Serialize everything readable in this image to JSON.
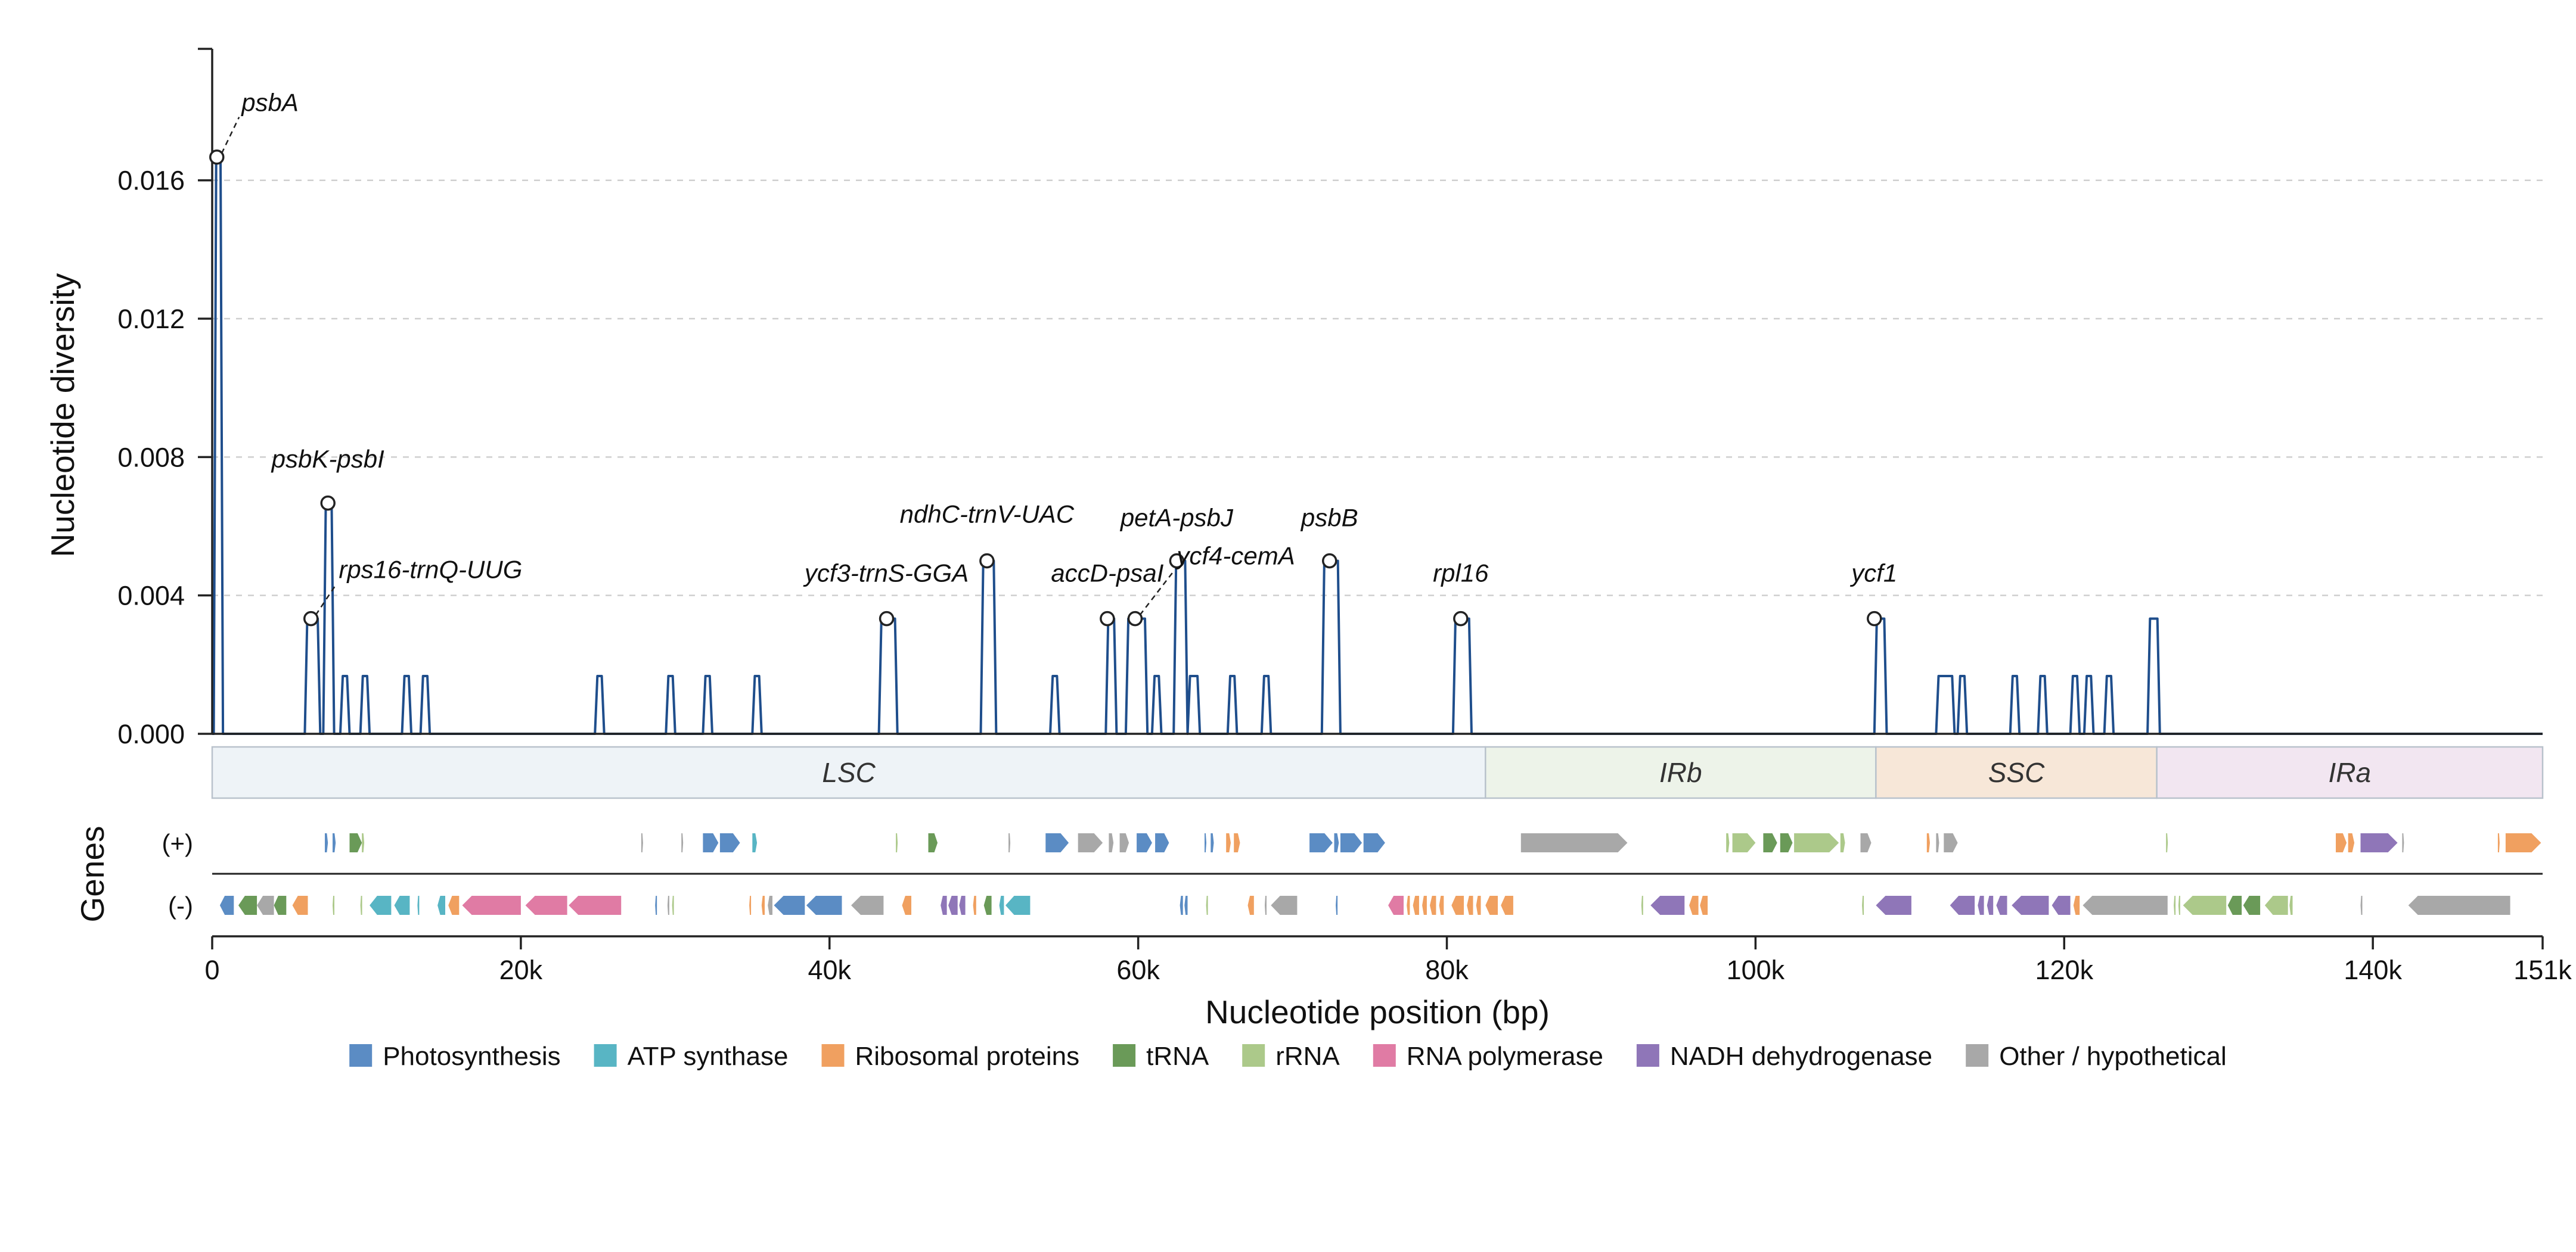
{
  "chart_data": {
    "type": "line",
    "title": "",
    "xlabel": "Nucleotide position (bp)",
    "ylabel": "Nucleotide diversity",
    "genes_label": "Genes",
    "xlim": [
      0,
      151000
    ],
    "ylim": [
      0,
      0.0198
    ],
    "grid": true,
    "x_ticks": [
      {
        "value": 0,
        "label": "0"
      },
      {
        "value": 20000,
        "label": "20k"
      },
      {
        "value": 40000,
        "label": "40k"
      },
      {
        "value": 60000,
        "label": "60k"
      },
      {
        "value": 80000,
        "label": "80k"
      },
      {
        "value": 100000,
        "label": "100k"
      },
      {
        "value": 120000,
        "label": "120k"
      },
      {
        "value": 140000,
        "label": "140k"
      },
      {
        "value": 151000,
        "label": "151k"
      }
    ],
    "y_ticks": [
      {
        "value": 0,
        "label": "0.000"
      },
      {
        "value": 0.004,
        "label": "0.004"
      },
      {
        "value": 0.008,
        "label": "0.008"
      },
      {
        "value": 0.012,
        "label": "0.012"
      },
      {
        "value": 0.016,
        "label": "0.016"
      }
    ],
    "peaks": [
      [
        100,
        700,
        0.01667
      ],
      [
        6000,
        7000,
        0.00333
      ],
      [
        7200,
        7900,
        0.00667
      ],
      [
        8300,
        8900,
        0.00167
      ],
      [
        9600,
        10200,
        0.00167
      ],
      [
        12300,
        12900,
        0.00167
      ],
      [
        13500,
        14100,
        0.00167
      ],
      [
        24800,
        25400,
        0.00167
      ],
      [
        29400,
        30000,
        0.00167
      ],
      [
        31800,
        32400,
        0.00167
      ],
      [
        35000,
        35600,
        0.00167
      ],
      [
        43200,
        44400,
        0.00333
      ],
      [
        49800,
        50800,
        0.005
      ],
      [
        54300,
        54900,
        0.00167
      ],
      [
        57900,
        58600,
        0.00333
      ],
      [
        59200,
        60600,
        0.00333
      ],
      [
        60900,
        61500,
        0.00167
      ],
      [
        62300,
        63200,
        0.005
      ],
      [
        63200,
        64000,
        0.00167
      ],
      [
        65800,
        66400,
        0.00167
      ],
      [
        68000,
        68600,
        0.00167
      ],
      [
        71900,
        73100,
        0.005
      ],
      [
        80400,
        81600,
        0.00333
      ],
      [
        107700,
        108500,
        0.00333
      ],
      [
        111700,
        112900,
        0.00167
      ],
      [
        113100,
        113700,
        0.00167
      ],
      [
        116500,
        117100,
        0.00167
      ],
      [
        118300,
        118900,
        0.00167
      ],
      [
        120400,
        121000,
        0.00167
      ],
      [
        121300,
        121900,
        0.00167
      ],
      [
        122600,
        123200,
        0.00167
      ],
      [
        125400,
        126200,
        0.00333
      ]
    ],
    "labeled_peaks": [
      {
        "label": "psbA",
        "x": 300,
        "y": 0.01667,
        "tx": 1900,
        "ty": 0.018,
        "leader": true
      },
      {
        "label": "psbK-psbI",
        "x": 7500,
        "y": 0.00667,
        "tx": 7500,
        "ty": 0.0077,
        "leader": false
      },
      {
        "label": "rps16-trnQ-UUG",
        "x": 6400,
        "y": 0.00333,
        "tx": 8200,
        "ty": 0.0045,
        "leader": true
      },
      {
        "label": "ycf3-trnS-GGA",
        "x": 43700,
        "y": 0.00333,
        "tx": 43700,
        "ty": 0.0044,
        "leader": false
      },
      {
        "label": "ndhC-trnV-UAC",
        "x": 50200,
        "y": 0.005,
        "tx": 50200,
        "ty": 0.0061,
        "leader": false
      },
      {
        "label": "accD-psaI",
        "x": 58000,
        "y": 0.00333,
        "tx": 58000,
        "ty": 0.0044,
        "leader": false
      },
      {
        "label": "petA-psbJ",
        "x": 62500,
        "y": 0.005,
        "tx": 62500,
        "ty": 0.006,
        "leader": false
      },
      {
        "label": "ycf4-cemA",
        "x": 59800,
        "y": 0.00333,
        "tx": 62500,
        "ty": 0.0049,
        "leader": true
      },
      {
        "label": "psbB",
        "x": 72400,
        "y": 0.005,
        "tx": 72400,
        "ty": 0.006,
        "leader": false
      },
      {
        "label": "rpl16",
        "x": 80900,
        "y": 0.00333,
        "tx": 80900,
        "ty": 0.0044,
        "leader": false
      },
      {
        "label": "ycf1",
        "x": 107700,
        "y": 0.00333,
        "tx": 107700,
        "ty": 0.0044,
        "leader": false
      }
    ],
    "regions": [
      {
        "name": "LSC",
        "start": 0,
        "end": 82500,
        "color": "#eef3f7"
      },
      {
        "name": "IRb",
        "start": 82500,
        "end": 107800,
        "color": "#edf3e9"
      },
      {
        "name": "SSC",
        "start": 107800,
        "end": 126000,
        "color": "#f7e7d8"
      },
      {
        "name": "IRa",
        "start": 126000,
        "end": 151000,
        "color": "#f2e6f1"
      }
    ],
    "strands": [
      "(+)",
      "(-)"
    ],
    "categories": [
      {
        "name": "Photosynthesis",
        "color": "#5b8cc4"
      },
      {
        "name": "ATP synthase",
        "color": "#58b5c4"
      },
      {
        "name": "Ribosomal proteins",
        "color": "#f0a060"
      },
      {
        "name": "tRNA",
        "color": "#6a9a58"
      },
      {
        "name": "rRNA",
        "color": "#acc98a"
      },
      {
        "name": "RNA polymerase",
        "color": "#e07ba4"
      },
      {
        "name": "NADH dehydrogenase",
        "color": "#8f76b8"
      },
      {
        "name": "Other / hypothetical",
        "color": "#a8a8a8"
      }
    ],
    "genes_plus": [
      [
        7300,
        7500,
        "Photosynthesis"
      ],
      [
        7800,
        8000,
        "Photosynthesis"
      ],
      [
        8900,
        9700,
        "tRNA"
      ],
      [
        9700,
        9850,
        "rRNA"
      ],
      [
        27800,
        27900,
        "Other / hypothetical"
      ],
      [
        30400,
        30500,
        "Other / hypothetical"
      ],
      [
        31800,
        32800,
        "Photosynthesis"
      ],
      [
        32900,
        34200,
        "Photosynthesis"
      ],
      [
        35000,
        35300,
        "ATP synthase"
      ],
      [
        44300,
        44400,
        "rRNA"
      ],
      [
        46400,
        47000,
        "tRNA"
      ],
      [
        51600,
        51700,
        "Other / hypothetical"
      ],
      [
        54000,
        55500,
        "Photosynthesis"
      ],
      [
        56100,
        57700,
        "Other / hypothetical"
      ],
      [
        58100,
        58400,
        "Other / hypothetical"
      ],
      [
        58800,
        59400,
        "Other / hypothetical"
      ],
      [
        59900,
        60900,
        "Photosynthesis"
      ],
      [
        61100,
        62000,
        "Photosynthesis"
      ],
      [
        64300,
        64400,
        "Photosynthesis"
      ],
      [
        64700,
        64900,
        "Photosynthesis"
      ],
      [
        65700,
        66000,
        "Ribosomal proteins"
      ],
      [
        66200,
        66600,
        "Ribosomal proteins"
      ],
      [
        71100,
        72600,
        "Photosynthesis"
      ],
      [
        72700,
        73000,
        "Photosynthesis"
      ],
      [
        73100,
        74500,
        "Photosynthesis"
      ],
      [
        74600,
        76000,
        "Photosynthesis"
      ],
      [
        84800,
        91700,
        "Other / hypothetical"
      ],
      [
        98100,
        98300,
        "rRNA"
      ],
      [
        98500,
        100000,
        "rRNA"
      ],
      [
        100500,
        101400,
        "tRNA"
      ],
      [
        101600,
        102400,
        "tRNA"
      ],
      [
        102500,
        105400,
        "rRNA"
      ],
      [
        105500,
        105800,
        "rRNA"
      ],
      [
        106800,
        107500,
        "Other / hypothetical"
      ],
      [
        111100,
        111300,
        "Ribosomal proteins"
      ],
      [
        111700,
        111900,
        "Other / hypothetical"
      ],
      [
        112200,
        113100,
        "Other / hypothetical"
      ],
      [
        126600,
        126700,
        "rRNA"
      ],
      [
        137600,
        138300,
        "Ribosomal proteins"
      ],
      [
        138400,
        138800,
        "Ribosomal proteins"
      ],
      [
        139200,
        141600,
        "NADH dehydrogenase"
      ],
      [
        141900,
        142000,
        "Other / hypothetical"
      ],
      [
        148100,
        148200,
        "Ribosomal proteins"
      ],
      [
        148600,
        150900,
        "Ribosomal proteins"
      ]
    ],
    "genes_minus": [
      [
        500,
        1400,
        "Photosynthesis"
      ],
      [
        1700,
        2900,
        "tRNA"
      ],
      [
        2900,
        4000,
        "Other / hypothetical"
      ],
      [
        4000,
        4800,
        "tRNA"
      ],
      [
        5200,
        6200,
        "Ribosomal proteins"
      ],
      [
        7800,
        7900,
        "rRNA"
      ],
      [
        9600,
        9700,
        "rRNA"
      ],
      [
        10200,
        11600,
        "ATP synthase"
      ],
      [
        11800,
        12800,
        "ATP synthase"
      ],
      [
        13300,
        13400,
        "ATP synthase"
      ],
      [
        14600,
        15100,
        "ATP synthase"
      ],
      [
        15300,
        16000,
        "Ribosomal proteins"
      ],
      [
        16200,
        20000,
        "RNA polymerase"
      ],
      [
        20300,
        23000,
        "RNA polymerase"
      ],
      [
        23100,
        26500,
        "RNA polymerase"
      ],
      [
        28700,
        28800,
        "Photosynthesis"
      ],
      [
        29500,
        29600,
        "Other / hypothetical"
      ],
      [
        29800,
        29900,
        "rRNA"
      ],
      [
        34800,
        34900,
        "Ribosomal proteins"
      ],
      [
        35600,
        35800,
        "Ribosomal proteins"
      ],
      [
        36000,
        36300,
        "Other / hypothetical"
      ],
      [
        36400,
        38400,
        "Photosynthesis"
      ],
      [
        38500,
        40800,
        "Photosynthesis"
      ],
      [
        41400,
        43500,
        "Other / hypothetical"
      ],
      [
        44700,
        45300,
        "Ribosomal proteins"
      ],
      [
        47200,
        47600,
        "NADH dehydrogenase"
      ],
      [
        47700,
        48300,
        "NADH dehydrogenase"
      ],
      [
        48400,
        48800,
        "NADH dehydrogenase"
      ],
      [
        49300,
        49500,
        "Ribosomal proteins"
      ],
      [
        50000,
        50500,
        "tRNA"
      ],
      [
        51000,
        51300,
        "ATP synthase"
      ],
      [
        51400,
        53000,
        "ATP synthase"
      ],
      [
        62700,
        62900,
        "Photosynthesis"
      ],
      [
        63000,
        63200,
        "Photosynthesis"
      ],
      [
        64400,
        64500,
        "rRNA"
      ],
      [
        67100,
        67500,
        "Ribosomal proteins"
      ],
      [
        68200,
        68300,
        "Other / hypothetical"
      ],
      [
        68600,
        70300,
        "Other / hypothetical"
      ],
      [
        72800,
        72900,
        "Photosynthesis"
      ],
      [
        76200,
        77200,
        "RNA polymerase"
      ],
      [
        77400,
        77600,
        "Ribosomal proteins"
      ],
      [
        77800,
        78200,
        "Ribosomal proteins"
      ],
      [
        78400,
        78700,
        "Ribosomal proteins"
      ],
      [
        78900,
        79300,
        "Ribosomal proteins"
      ],
      [
        79500,
        79800,
        "Ribosomal proteins"
      ],
      [
        80300,
        81100,
        "Ribosomal proteins"
      ],
      [
        81300,
        81700,
        "Ribosomal proteins"
      ],
      [
        81900,
        82200,
        "Ribosomal proteins"
      ],
      [
        82500,
        83300,
        "Ribosomal proteins"
      ],
      [
        83500,
        84300,
        "Ribosomal proteins"
      ],
      [
        92600,
        92700,
        "rRNA"
      ],
      [
        93200,
        95400,
        "NADH dehydrogenase"
      ],
      [
        95700,
        96300,
        "Ribosomal proteins"
      ],
      [
        96400,
        96900,
        "Ribosomal proteins"
      ],
      [
        106900,
        107000,
        "rRNA"
      ],
      [
        107800,
        110100,
        "NADH dehydrogenase"
      ],
      [
        112600,
        114200,
        "NADH dehydrogenase"
      ],
      [
        114400,
        114800,
        "NADH dehydrogenase"
      ],
      [
        115000,
        115400,
        "NADH dehydrogenase"
      ],
      [
        115600,
        116300,
        "NADH dehydrogenase"
      ],
      [
        116600,
        119000,
        "NADH dehydrogenase"
      ],
      [
        119200,
        120400,
        "NADH dehydrogenase"
      ],
      [
        120600,
        121000,
        "Ribosomal proteins"
      ],
      [
        121200,
        126700,
        "Other / hypothetical"
      ],
      [
        127100,
        127200,
        "rRNA"
      ],
      [
        127400,
        127500,
        "rRNA"
      ],
      [
        127700,
        130500,
        "rRNA"
      ],
      [
        130600,
        131500,
        "tRNA"
      ],
      [
        131600,
        132700,
        "tRNA"
      ],
      [
        133000,
        134500,
        "rRNA"
      ],
      [
        134600,
        134800,
        "rRNA"
      ],
      [
        139200,
        139300,
        "Other / hypothetical"
      ],
      [
        142300,
        148900,
        "Other / hypothetical"
      ]
    ]
  }
}
